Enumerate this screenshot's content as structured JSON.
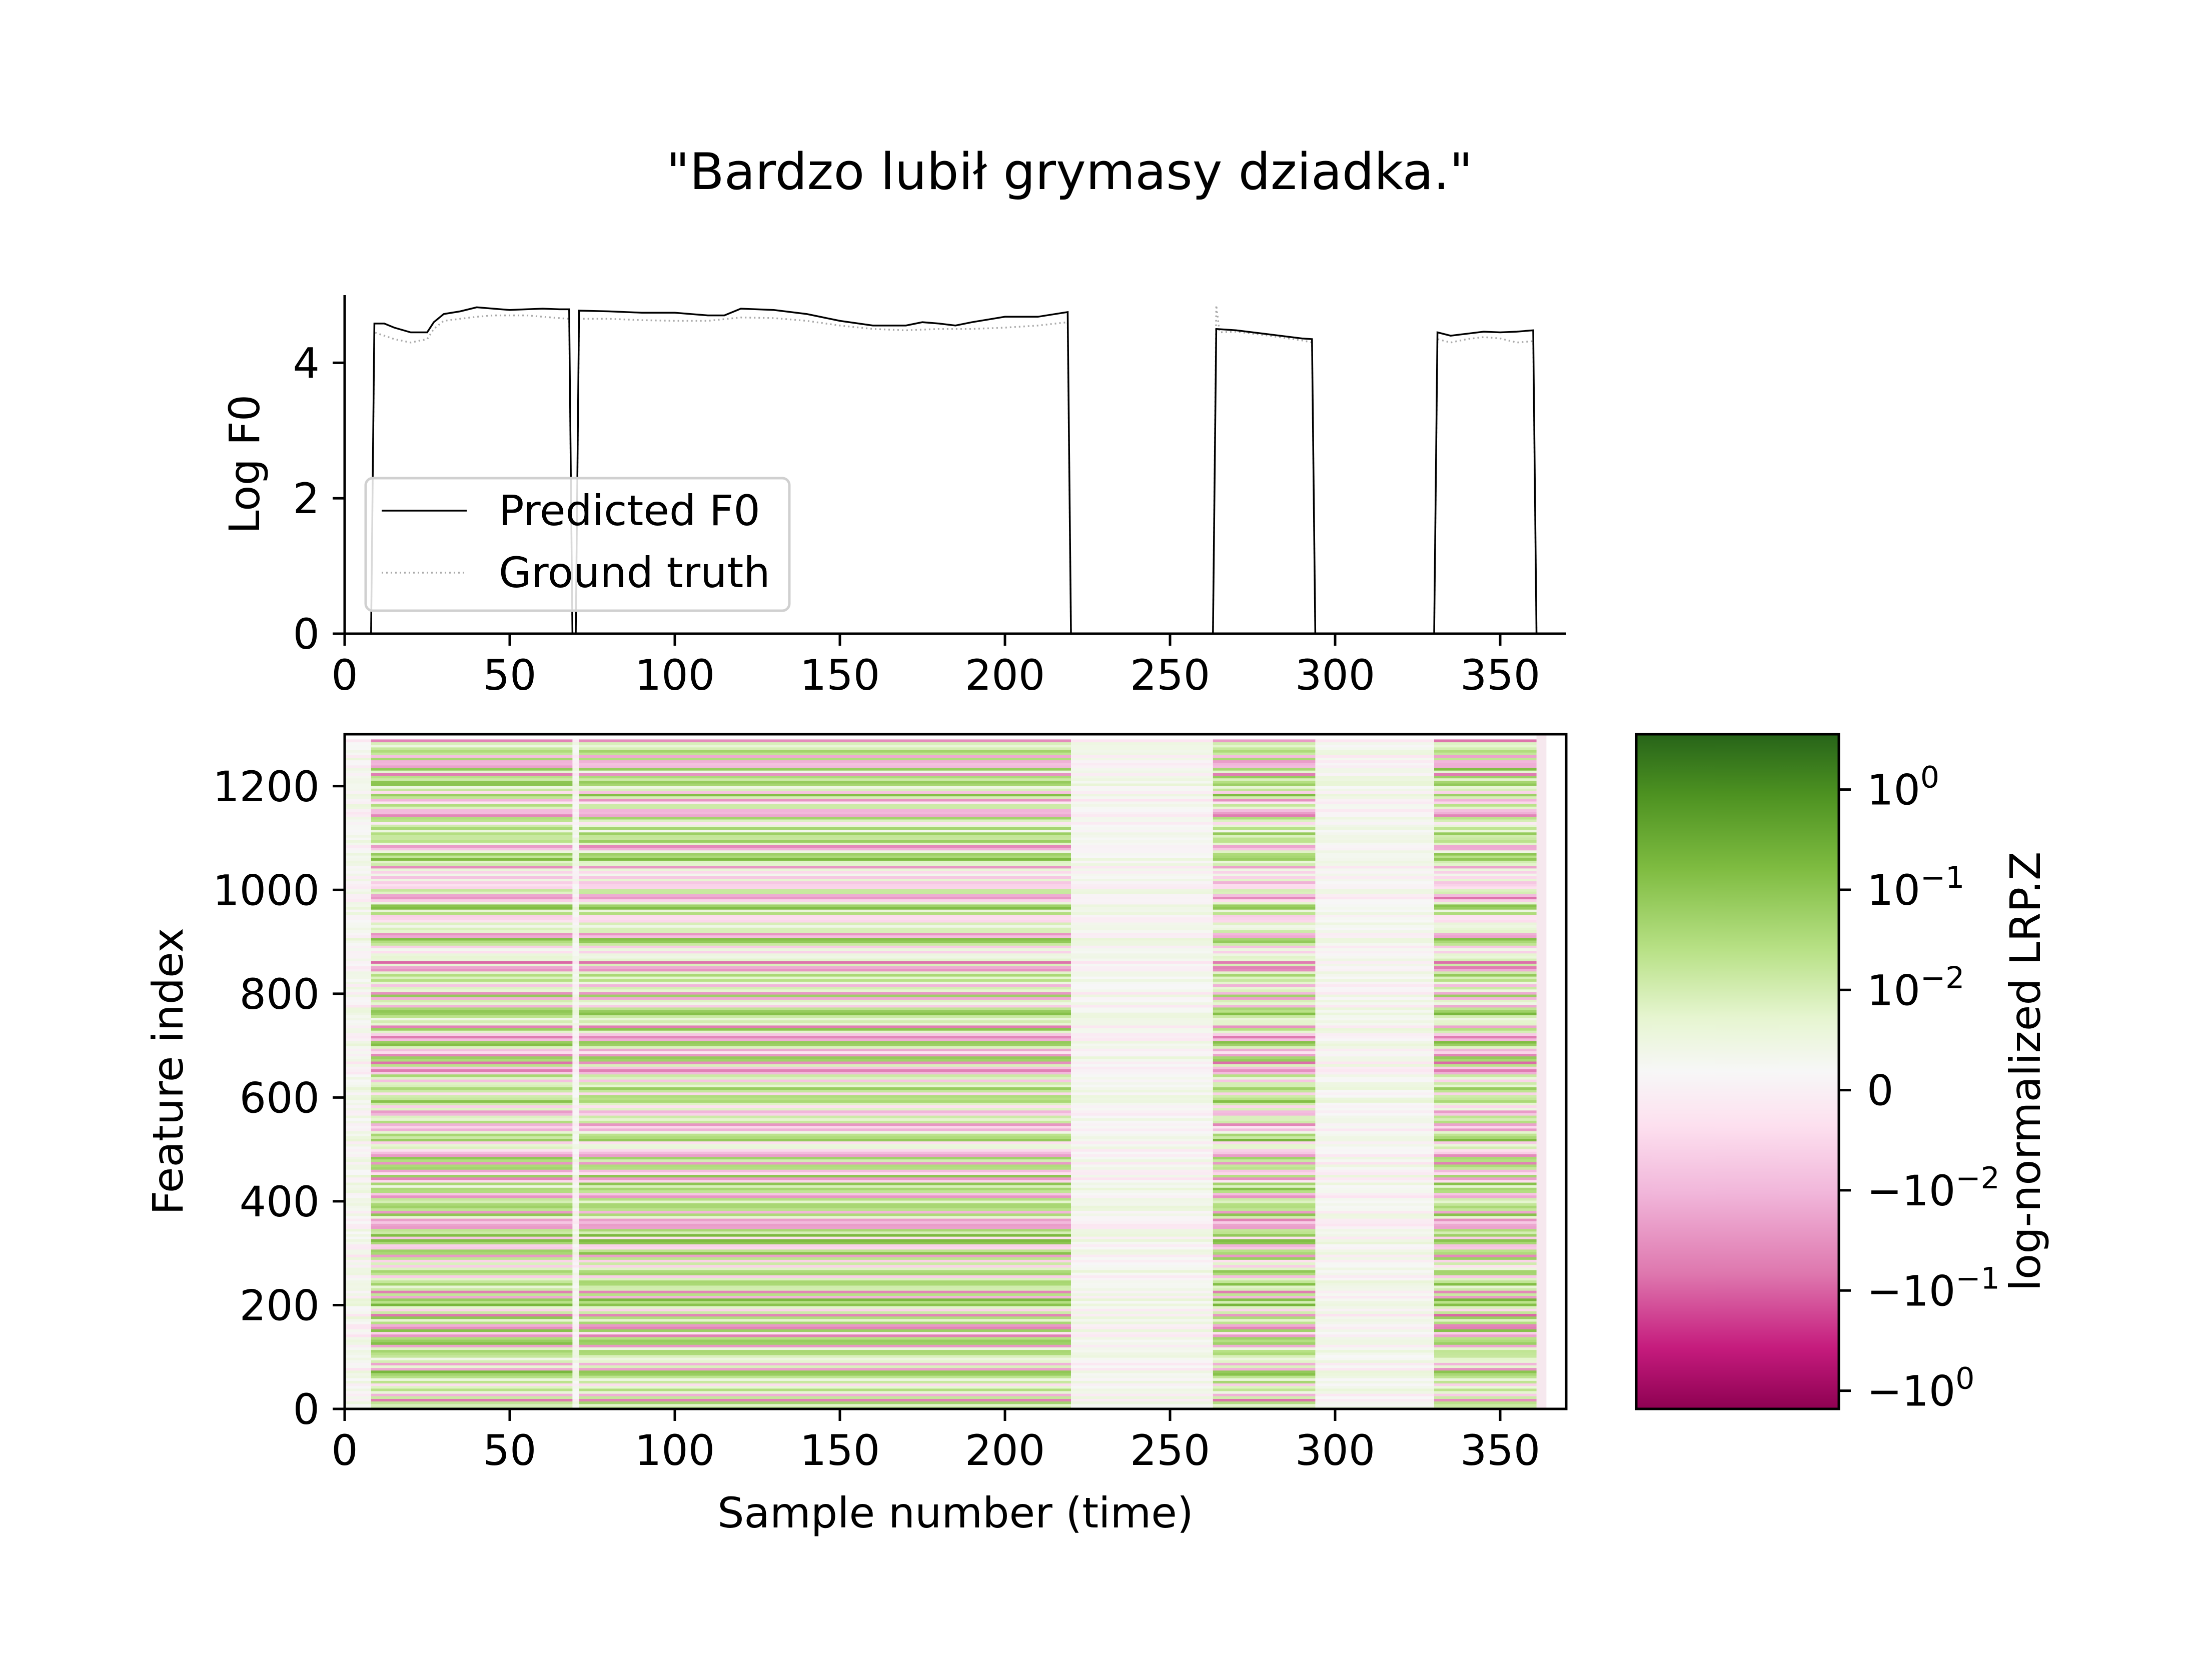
{
  "title": "\"Bardzo lubił grymasy dziadka.\"",
  "chart_data": [
    {
      "type": "line",
      "ylabel": "Log F0",
      "xlabel": "",
      "xlim": [
        0,
        370
      ],
      "ylim": [
        0,
        5
      ],
      "xticks": [
        0,
        50,
        100,
        150,
        200,
        250,
        300,
        350
      ],
      "yticks": [
        0,
        2,
        4
      ],
      "legend": {
        "position": "lower-left",
        "entries": [
          "Predicted F0",
          "Ground truth"
        ]
      },
      "grid": false,
      "series": [
        {
          "name": "Predicted F0",
          "color": "#000000",
          "style": "solid",
          "points": [
            [
              0,
              0
            ],
            [
              8,
              0
            ],
            [
              9,
              4.58
            ],
            [
              12,
              4.58
            ],
            [
              15,
              4.52
            ],
            [
              20,
              4.45
            ],
            [
              25,
              4.45
            ],
            [
              27,
              4.6
            ],
            [
              30,
              4.72
            ],
            [
              35,
              4.76
            ],
            [
              40,
              4.82
            ],
            [
              45,
              4.8
            ],
            [
              50,
              4.78
            ],
            [
              55,
              4.79
            ],
            [
              60,
              4.8
            ],
            [
              65,
              4.79
            ],
            [
              68,
              4.79
            ],
            [
              69,
              0
            ],
            [
              70,
              0
            ],
            [
              71,
              4.77
            ],
            [
              80,
              4.76
            ],
            [
              90,
              4.74
            ],
            [
              100,
              4.74
            ],
            [
              110,
              4.7
            ],
            [
              115,
              4.7
            ],
            [
              120,
              4.8
            ],
            [
              130,
              4.78
            ],
            [
              140,
              4.72
            ],
            [
              150,
              4.62
            ],
            [
              160,
              4.55
            ],
            [
              170,
              4.55
            ],
            [
              175,
              4.6
            ],
            [
              180,
              4.58
            ],
            [
              185,
              4.55
            ],
            [
              190,
              4.6
            ],
            [
              200,
              4.68
            ],
            [
              210,
              4.68
            ],
            [
              219,
              4.75
            ],
            [
              220,
              0
            ],
            [
              263,
              0
            ],
            [
              264,
              4.5
            ],
            [
              270,
              4.48
            ],
            [
              280,
              4.42
            ],
            [
              290,
              4.36
            ],
            [
              293,
              4.35
            ],
            [
              294,
              0
            ],
            [
              330,
              0
            ],
            [
              331,
              4.45
            ],
            [
              335,
              4.4
            ],
            [
              340,
              4.43
            ],
            [
              345,
              4.46
            ],
            [
              350,
              4.45
            ],
            [
              355,
              4.46
            ],
            [
              360,
              4.48
            ],
            [
              361,
              0
            ],
            [
              370,
              0
            ]
          ]
        },
        {
          "name": "Ground truth",
          "color": "#aaaaaa",
          "style": "dotted",
          "points": [
            [
              0,
              0
            ],
            [
              8,
              0
            ],
            [
              9,
              4.45
            ],
            [
              12,
              4.4
            ],
            [
              15,
              4.35
            ],
            [
              20,
              4.3
            ],
            [
              25,
              4.35
            ],
            [
              27,
              4.5
            ],
            [
              30,
              4.62
            ],
            [
              35,
              4.65
            ],
            [
              40,
              4.68
            ],
            [
              45,
              4.7
            ],
            [
              50,
              4.7
            ],
            [
              55,
              4.7
            ],
            [
              60,
              4.68
            ],
            [
              65,
              4.66
            ],
            [
              68,
              4.65
            ],
            [
              69,
              0
            ],
            [
              70,
              0
            ],
            [
              71,
              4.65
            ],
            [
              80,
              4.65
            ],
            [
              90,
              4.63
            ],
            [
              100,
              4.62
            ],
            [
              110,
              4.62
            ],
            [
              120,
              4.67
            ],
            [
              130,
              4.66
            ],
            [
              140,
              4.62
            ],
            [
              150,
              4.55
            ],
            [
              160,
              4.5
            ],
            [
              170,
              4.48
            ],
            [
              180,
              4.5
            ],
            [
              190,
              4.5
            ],
            [
              200,
              4.52
            ],
            [
              210,
              4.55
            ],
            [
              219,
              4.6
            ],
            [
              220,
              0
            ],
            [
              263,
              0
            ],
            [
              264,
              4.85
            ],
            [
              265,
              4.45
            ],
            [
              270,
              4.46
            ],
            [
              280,
              4.4
            ],
            [
              290,
              4.33
            ],
            [
              293,
              4.3
            ],
            [
              294,
              0
            ],
            [
              330,
              0
            ],
            [
              331,
              4.35
            ],
            [
              335,
              4.3
            ],
            [
              340,
              4.35
            ],
            [
              345,
              4.38
            ],
            [
              350,
              4.36
            ],
            [
              355,
              4.3
            ],
            [
              360,
              4.32
            ],
            [
              361,
              0
            ],
            [
              370,
              0
            ]
          ]
        }
      ]
    },
    {
      "type": "heatmap",
      "xlabel": "Sample number (time)",
      "ylabel": "Feature index",
      "xlim": [
        0,
        370
      ],
      "ylim": [
        0,
        1300
      ],
      "xticks": [
        0,
        50,
        100,
        150,
        200,
        250,
        300,
        350
      ],
      "yticks": [
        0,
        200,
        400,
        600,
        800,
        1000,
        1200
      ],
      "colormap": "PiYG",
      "colormap_stops": [
        "#8e0152",
        "#c51b7d",
        "#de77ae",
        "#f1b6da",
        "#fde0ef",
        "#f7f7f7",
        "#e6f5d0",
        "#b8e186",
        "#7fbc41",
        "#4d9221",
        "#276419"
      ],
      "time_segments": [
        {
          "range": [
            0,
            8
          ],
          "state": "low"
        },
        {
          "range": [
            8,
            69
          ],
          "state": "voiced"
        },
        {
          "range": [
            69,
            71
          ],
          "state": "low"
        },
        {
          "range": [
            71,
            220
          ],
          "state": "voiced"
        },
        {
          "range": [
            220,
            263
          ],
          "state": "low"
        },
        {
          "range": [
            263,
            294
          ],
          "state": "voiced"
        },
        {
          "range": [
            294,
            330
          ],
          "state": "low"
        },
        {
          "range": [
            330,
            361
          ],
          "state": "voiced"
        },
        {
          "range": [
            361,
            364
          ],
          "state": "blank"
        }
      ],
      "colorbar": {
        "label": "log-normalized LRP.Z",
        "ticks": [
          "10^0",
          "10^-1",
          "10^-2",
          "0",
          "-10^-2",
          "-10^-1",
          "-10^0"
        ]
      }
    }
  ]
}
